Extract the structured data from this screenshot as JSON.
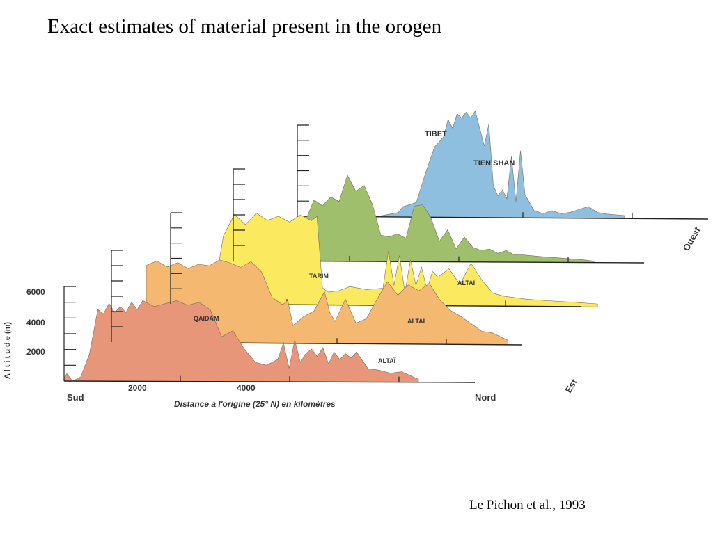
{
  "slide": {
    "title": "Exact estimates of material present in the orogen",
    "citation": "Le Pichon et al., 1993"
  },
  "chart_data": {
    "type": "area",
    "title": "",
    "xlabel": "Distance à l'origine (25° N) en kilomètres",
    "ylabel": "A l t i t u d e   (m)",
    "x_tick_labels": [
      "2000",
      "4000"
    ],
    "y_tick_labels": [
      "2000",
      "4000",
      "6000"
    ],
    "x_end_labels": {
      "start": "Sud",
      "end": "Nord"
    },
    "depth_labels": {
      "front": "Est",
      "back": "Ouest"
    },
    "ylim": [
      0,
      6000
    ],
    "region_labels": [
      "TIBET",
      "TIEN SHAN",
      "TARIM",
      "QAIDAM",
      "ALTAÏ",
      "ALTAÏ",
      "ALTAÏ"
    ],
    "series": [
      {
        "color": "#e8967a",
        "x": [
          0,
          50,
          150,
          300,
          450,
          600,
          700,
          800,
          900,
          1000,
          1100,
          1200,
          1300,
          1400,
          1600,
          1800,
          2000,
          2200,
          2400,
          2600,
          2800,
          3000,
          3200,
          3400,
          3600,
          3800,
          3900,
          4000,
          4100,
          4200,
          4300,
          4400,
          4500,
          4600,
          4700,
          4800,
          4900,
          5000,
          5100,
          5200,
          5400,
          5600,
          5800,
          6000,
          6300
        ],
        "y": [
          200,
          500,
          0,
          300,
          1800,
          4800,
          4500,
          5200,
          4600,
          5000,
          4600,
          5300,
          4800,
          5400,
          5000,
          5200,
          5400,
          5100,
          5300,
          4800,
          3000,
          3400,
          2200,
          1300,
          1100,
          1500,
          2600,
          900,
          2800,
          1300,
          1900,
          2200,
          1700,
          2300,
          1200,
          2000,
          1500,
          1900,
          1600,
          2000,
          900,
          800,
          600,
          700,
          200
        ]
      },
      {
        "color": "#f5b870",
        "x": [
          0,
          200,
          400,
          600,
          800,
          1000,
          1200,
          1400,
          1600,
          1800,
          2000,
          2200,
          2400,
          2600,
          2700,
          2800,
          3000,
          3200,
          3400,
          3500,
          3600,
          3800,
          4000,
          4200,
          4400,
          4600,
          4800,
          5000,
          5200,
          5400,
          5600,
          5800,
          6000,
          6200,
          6400,
          6600,
          6900
        ],
        "y": [
          5200,
          5500,
          5100,
          5400,
          5000,
          5300,
          5200,
          5600,
          5400,
          5100,
          5500,
          4800,
          3100,
          2600,
          2900,
          1200,
          1800,
          2200,
          3500,
          2100,
          1500,
          3000,
          1400,
          1700,
          3000,
          4200,
          3300,
          4000,
          3600,
          4100,
          3000,
          2300,
          1900,
          1400,
          900,
          800,
          300
        ]
      },
      {
        "color": "#fbea60",
        "x": [
          0,
          100,
          300,
          500,
          700,
          900,
          1100,
          1300,
          1500,
          1700,
          1800,
          1900,
          2000,
          2200,
          2400,
          2700,
          3000,
          3100,
          3200,
          3300,
          3400,
          3500,
          3600,
          3700,
          3800,
          3900,
          4000,
          4200,
          4400,
          4600,
          4800,
          5000,
          5200,
          5400,
          5600,
          6000,
          6500,
          6900
        ],
        "y": [
          2500,
          4800,
          6300,
          5600,
          6400,
          5900,
          6200,
          5800,
          6300,
          5900,
          6200,
          1200,
          900,
          1000,
          1300,
          1100,
          1200,
          3800,
          1400,
          3500,
          900,
          3200,
          1400,
          2700,
          1100,
          2400,
          2000,
          2600,
          1500,
          3000,
          1800,
          900,
          700,
          600,
          500,
          400,
          300,
          200
        ]
      },
      {
        "color": "#9fbf6c",
        "x": [
          0,
          200,
          400,
          600,
          800,
          1000,
          1200,
          1400,
          1600,
          1800,
          2000,
          2200,
          2400,
          2600,
          2800,
          3000,
          3200,
          3400,
          3600,
          3800,
          4000,
          4200,
          4400,
          4600,
          4800,
          5000,
          5200,
          5400,
          5600,
          6000,
          6500,
          7000,
          7300
        ],
        "y": [
          200,
          900,
          2800,
          4200,
          3800,
          4400,
          4100,
          5900,
          4800,
          5200,
          3900,
          1800,
          1700,
          1900,
          1600,
          3800,
          3900,
          3000,
          1400,
          2200,
          900,
          1700,
          1000,
          800,
          900,
          600,
          800,
          500,
          500,
          400,
          300,
          200,
          100
        ]
      },
      {
        "color": "#8fbfde",
        "x": [
          0,
          500,
          1000,
          1100,
          1200,
          1400,
          1600,
          1800,
          2000,
          2100,
          2200,
          2300,
          2400,
          2500,
          2600,
          2700,
          2800,
          2900,
          3000,
          3100,
          3200,
          3300,
          3400,
          3500,
          3600,
          3700,
          3800,
          4000,
          4200,
          4400,
          4600,
          4800,
          5000,
          5200,
          5400,
          5600,
          6000
        ],
        "y": [
          0,
          0,
          300,
          700,
          800,
          1000,
          3000,
          4800,
          5500,
          6700,
          6100,
          7100,
          6800,
          7200,
          6800,
          7300,
          6100,
          4900,
          6400,
          2200,
          1500,
          1900,
          1300,
          4200,
          1100,
          4600,
          1600,
          500,
          300,
          500,
          300,
          400,
          600,
          800,
          400,
          300,
          200
        ]
      }
    ]
  }
}
